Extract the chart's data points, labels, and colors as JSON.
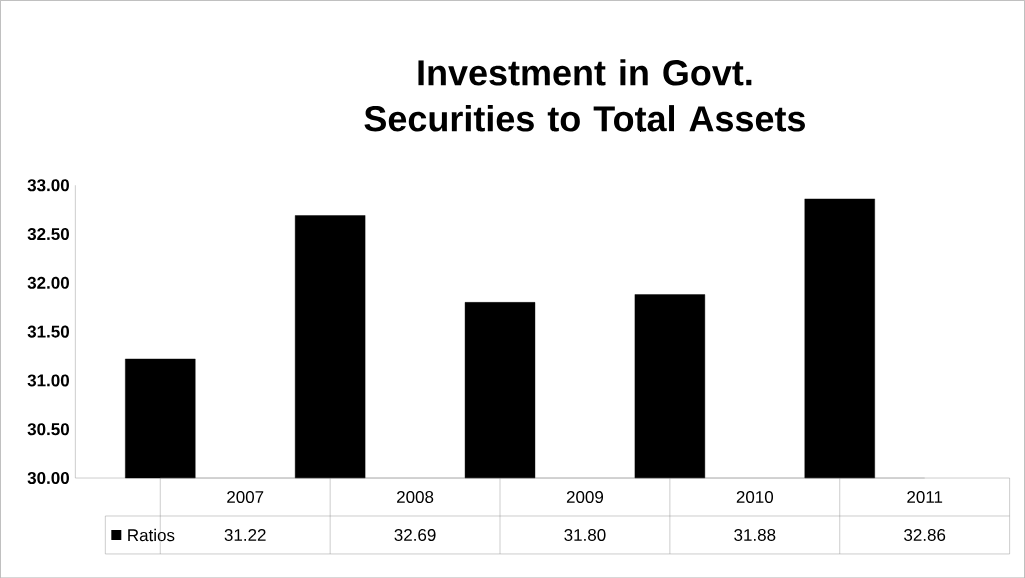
{
  "chart_data": {
    "type": "bar",
    "title": "Investment in Govt. Securities to Total Assets",
    "categories": [
      "2007",
      "2008",
      "2009",
      "2010",
      "2011"
    ],
    "series": [
      {
        "name": "Ratios",
        "color": "#000000",
        "values": [
          31.22,
          32.69,
          31.8,
          31.88,
          32.86
        ],
        "value_labels": [
          "31.22",
          "32.69",
          "31.80",
          "31.88",
          "32.86"
        ]
      }
    ],
    "ylim": [
      30,
      33
    ],
    "yticks": [
      {
        "value": 30,
        "label": "30.00"
      },
      {
        "value": 30.5,
        "label": "30.50"
      },
      {
        "value": 31,
        "label": "31.00"
      },
      {
        "value": 31.5,
        "label": "31.50"
      },
      {
        "value": 32,
        "label": "32.00"
      },
      {
        "value": 32.5,
        "label": "32.50"
      },
      {
        "value": 33,
        "label": "33.00"
      }
    ],
    "legend": "bottom",
    "grid": false
  }
}
